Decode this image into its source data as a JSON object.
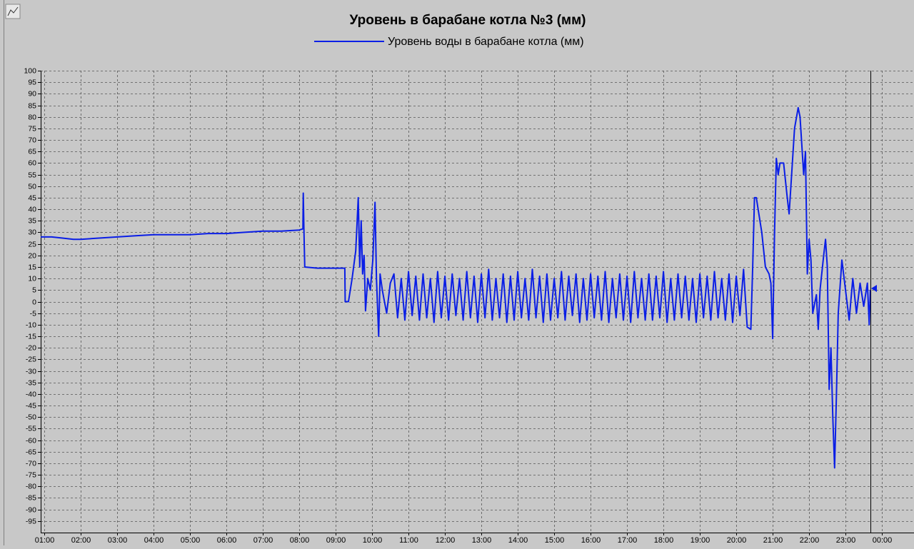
{
  "chart_data": {
    "type": "line",
    "title": "Уровень в барабане котла №3 (мм)",
    "x": [
      0.9,
      1.2,
      1.5,
      1.8,
      2.0,
      2.5,
      3.0,
      3.5,
      4.0,
      4.5,
      5.0,
      5.5,
      6.0,
      6.5,
      7.0,
      7.5,
      8.0,
      8.1,
      8.11,
      8.13,
      8.15,
      8.5,
      9.0,
      9.25,
      9.26,
      9.35,
      9.45,
      9.55,
      9.62,
      9.66,
      9.7,
      9.74,
      9.78,
      9.82,
      9.88,
      9.95,
      10.02,
      10.08,
      10.12,
      10.18,
      10.22,
      10.28,
      10.34,
      10.4,
      10.5,
      10.6,
      10.7,
      10.8,
      10.9,
      11.0,
      11.1,
      11.2,
      11.3,
      11.4,
      11.5,
      11.6,
      11.7,
      11.8,
      11.9,
      12.0,
      12.1,
      12.2,
      12.3,
      12.4,
      12.5,
      12.6,
      12.7,
      12.8,
      12.9,
      13.0,
      13.1,
      13.2,
      13.3,
      13.4,
      13.5,
      13.6,
      13.7,
      13.8,
      13.9,
      14.0,
      14.1,
      14.2,
      14.3,
      14.4,
      14.5,
      14.6,
      14.7,
      14.8,
      14.9,
      15.0,
      15.1,
      15.2,
      15.3,
      15.4,
      15.5,
      15.6,
      15.7,
      15.8,
      15.9,
      16.0,
      16.1,
      16.2,
      16.3,
      16.4,
      16.5,
      16.6,
      16.7,
      16.8,
      16.9,
      17.0,
      17.1,
      17.2,
      17.3,
      17.4,
      17.5,
      17.6,
      17.7,
      17.8,
      17.9,
      18.0,
      18.1,
      18.2,
      18.3,
      18.4,
      18.5,
      18.6,
      18.7,
      18.8,
      18.9,
      19.0,
      19.1,
      19.2,
      19.3,
      19.4,
      19.5,
      19.6,
      19.7,
      19.8,
      19.9,
      20.0,
      20.1,
      20.2,
      20.3,
      20.4,
      20.45,
      20.5,
      20.55,
      20.6,
      20.7,
      20.8,
      20.9,
      20.95,
      21.0,
      21.05,
      21.1,
      21.15,
      21.2,
      21.3,
      21.4,
      21.45,
      21.5,
      21.6,
      21.7,
      21.75,
      21.85,
      21.9,
      21.95,
      22.0,
      22.05,
      22.1,
      22.2,
      22.25,
      22.3,
      22.4,
      22.45,
      22.5,
      22.55,
      22.6,
      22.65,
      22.7,
      22.75,
      22.8,
      22.9,
      23.0,
      23.1,
      23.2,
      23.3,
      23.4,
      23.5,
      23.6,
      23.65,
      23.68
    ],
    "series": [
      {
        "name": "Уровень воды в барабане котла (мм)",
        "color": "#0a1ee6",
        "values": [
          28,
          28,
          27.5,
          27,
          27,
          27.5,
          28,
          28.5,
          29,
          29,
          29,
          29.5,
          29.5,
          30,
          30.5,
          30.5,
          31,
          31.5,
          47,
          30,
          15,
          14.5,
          14.5,
          14.5,
          0,
          0,
          10,
          22,
          45,
          15,
          35,
          12,
          20,
          -4,
          10,
          5,
          18,
          43,
          10,
          -15,
          12,
          5,
          0,
          -5,
          8,
          12,
          -7,
          10,
          -8,
          13,
          -6,
          11,
          -8,
          12,
          -7,
          10,
          -9,
          13,
          -7,
          11,
          -8,
          12,
          -6,
          10,
          -8,
          13,
          -7,
          11,
          -9,
          12,
          -7,
          14,
          -8,
          10,
          -7,
          12,
          -9,
          11,
          -8,
          13,
          -7,
          10,
          -8,
          14,
          -7,
          11,
          -9,
          12,
          -8,
          10,
          -7,
          13,
          -8,
          11,
          -6,
          12,
          -9,
          10,
          -8,
          12,
          -7,
          11,
          -8,
          13,
          -9,
          10,
          -7,
          12,
          -8,
          11,
          -9,
          13,
          -7,
          10,
          -8,
          12,
          -8,
          11,
          -7,
          13,
          -9,
          10,
          -8,
          12,
          -7,
          11,
          -8,
          10,
          -9,
          12,
          -7,
          11,
          -8,
          13,
          -7,
          10,
          -8,
          12,
          -9,
          11,
          -6,
          14,
          -11,
          -12,
          15,
          45,
          45,
          40,
          30,
          15,
          12,
          8,
          -16,
          30,
          62,
          55,
          60,
          60,
          45,
          38,
          50,
          75,
          84,
          80,
          55,
          65,
          12,
          27,
          18,
          -5,
          3,
          -12,
          5,
          20,
          27,
          15,
          -38,
          -20,
          -50,
          -72,
          -40,
          -5,
          18,
          5,
          -8,
          10,
          -5,
          8,
          -2,
          8,
          -10,
          5
        ]
      }
    ],
    "xlim": [
      0.9,
      24.88
    ],
    "xticks": [
      {
        "value": 1,
        "label": "01:00"
      },
      {
        "value": 2,
        "label": "02:00"
      },
      {
        "value": 3,
        "label": "03:00"
      },
      {
        "value": 4,
        "label": "04:00"
      },
      {
        "value": 5,
        "label": "05:00"
      },
      {
        "value": 6,
        "label": "06:00"
      },
      {
        "value": 7,
        "label": "07:00"
      },
      {
        "value": 8,
        "label": "08:00"
      },
      {
        "value": 9,
        "label": "09:00"
      },
      {
        "value": 10,
        "label": "10:00"
      },
      {
        "value": 11,
        "label": "11:00"
      },
      {
        "value": 12,
        "label": "12:00"
      },
      {
        "value": 13,
        "label": "13:00"
      },
      {
        "value": 14,
        "label": "14:00"
      },
      {
        "value": 15,
        "label": "15:00"
      },
      {
        "value": 16,
        "label": "16:00"
      },
      {
        "value": 17,
        "label": "17:00"
      },
      {
        "value": 18,
        "label": "18:00"
      },
      {
        "value": 19,
        "label": "19:00"
      },
      {
        "value": 20,
        "label": "20:00"
      },
      {
        "value": 21,
        "label": "21:00"
      },
      {
        "value": 22,
        "label": "22:00"
      },
      {
        "value": 23,
        "label": "23:00"
      },
      {
        "value": 24,
        "label": "00:00"
      }
    ],
    "ylim": [
      -100,
      100
    ],
    "yticks": [
      100,
      95,
      90,
      85,
      80,
      75,
      70,
      65,
      60,
      55,
      50,
      45,
      40,
      35,
      30,
      25,
      20,
      15,
      10,
      5,
      0,
      -5,
      -10,
      -15,
      -20,
      -25,
      -30,
      -35,
      -40,
      -45,
      -50,
      -55,
      -60,
      -65,
      -70,
      -75,
      -80,
      -85,
      -90,
      -95
    ],
    "grid": true
  }
}
